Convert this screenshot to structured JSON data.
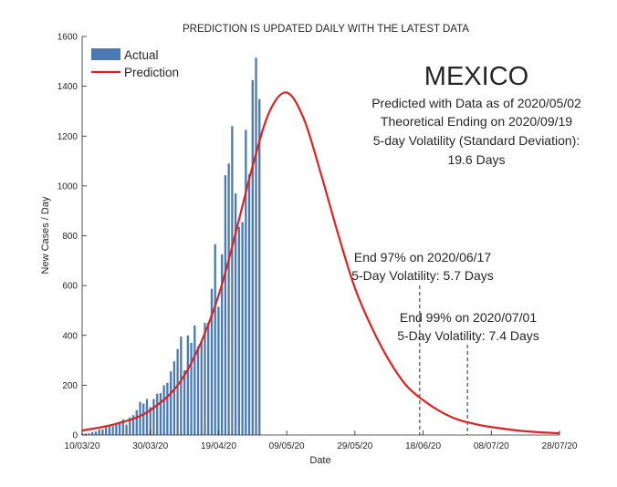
{
  "chart_data": {
    "type": "bar+line",
    "title": "PREDICTION IS UPDATED DAILY WITH THE LATEST DATA",
    "xlabel": "Date",
    "ylabel": "New Cases / Day",
    "ylim": [
      0,
      1600
    ],
    "yticks": [
      0,
      200,
      400,
      600,
      800,
      1000,
      1200,
      1400,
      1600
    ],
    "xlim": [
      "2020-03-10",
      "2020-07-28"
    ],
    "xticks": [
      "10/03/20",
      "30/03/20",
      "19/04/20",
      "09/05/20",
      "29/05/20",
      "18/06/20",
      "08/07/20",
      "28/07/20"
    ],
    "xtick_dates": [
      "2020-03-10",
      "2020-03-30",
      "2020-04-19",
      "2020-05-09",
      "2020-05-29",
      "2020-06-18",
      "2020-07-08",
      "2020-07-28"
    ],
    "legend": {
      "position": "top-left",
      "entries": [
        "Actual",
        "Prediction"
      ]
    },
    "colors": {
      "actual": "#4a7ab5",
      "prediction": "#e32020",
      "text": "#262626"
    },
    "series": [
      {
        "name": "Actual",
        "type": "bar",
        "start_date": "2020-03-10",
        "values": [
          5,
          6,
          7,
          12,
          14,
          23,
          23,
          31,
          40,
          36,
          48,
          52,
          63,
          42,
          70,
          80,
          100,
          133,
          126,
          145,
          112,
          145,
          166,
          168,
          200,
          210,
          255,
          296,
          345,
          395,
          260,
          400,
          370,
          440,
          356,
          375,
          450,
          452,
          587,
          766,
          515,
          725,
          1043,
          1090,
          1240,
          970,
          835,
          855,
          1225,
          1047,
          1425,
          1515,
          1349
        ]
      },
      {
        "name": "Prediction",
        "type": "line",
        "x": [
          "2020-03-10",
          "2020-03-20",
          "2020-03-30",
          "2020-04-09",
          "2020-04-19",
          "2020-04-29",
          "2020-05-04",
          "2020-05-09",
          "2020-05-14",
          "2020-05-19",
          "2020-05-24",
          "2020-05-29",
          "2020-06-03",
          "2020-06-08",
          "2020-06-13",
          "2020-06-18",
          "2020-06-23",
          "2020-06-28",
          "2020-07-03",
          "2020-07-08",
          "2020-07-18",
          "2020-07-28"
        ],
        "values": [
          18,
          45,
          100,
          240,
          560,
          1080,
          1300,
          1375,
          1270,
          1050,
          810,
          590,
          430,
          300,
          200,
          140,
          95,
          63,
          45,
          32,
          15,
          7
        ]
      }
    ],
    "annotations": {
      "country": "MEXICO",
      "info": [
        "Predicted with Data as of 2020/05/02",
        "Theoretical Ending on 2020/09/19",
        "5-day Volatility (Standard Deviation):",
        "19.6 Days"
      ],
      "markers": [
        {
          "date": "2020-06-17",
          "text1": "End 97% on 2020/06/17",
          "text2": "5-Day Volatility: 5.7 Days"
        },
        {
          "date": "2020-07-01",
          "text1": "End 99% on 2020/07/01",
          "text2": "5-Day Volatility: 7.4 Days"
        }
      ]
    }
  }
}
